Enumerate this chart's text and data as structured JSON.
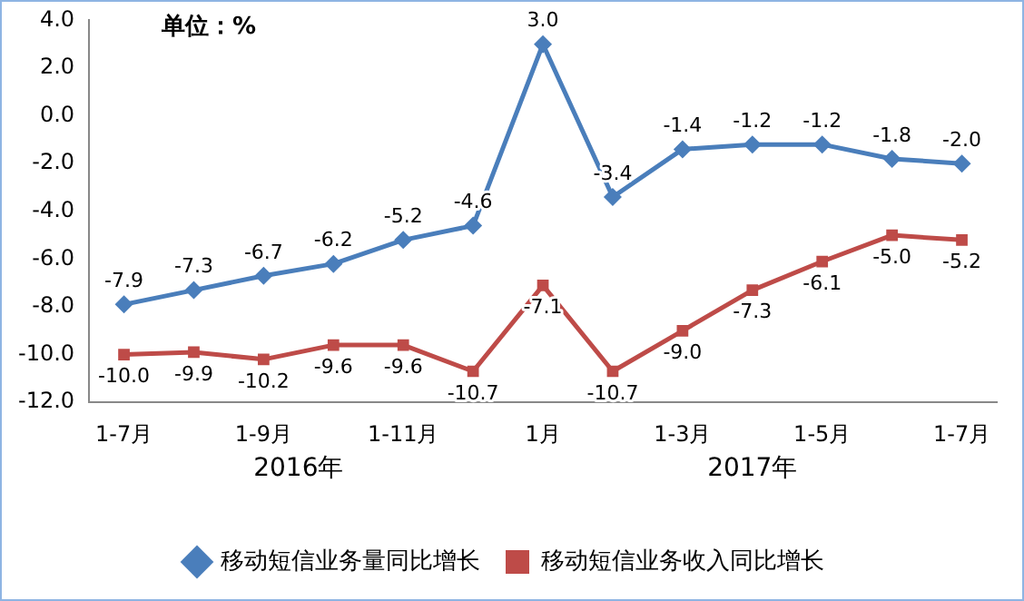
{
  "chart_data": {
    "type": "line",
    "categories": [
      "1-7月",
      null,
      "1-9月",
      null,
      "1-11月",
      null,
      "1月",
      null,
      "1-3月",
      null,
      "1-5月",
      null,
      "1-7月"
    ],
    "series": [
      {
        "name": "移动短信业务量同比增长",
        "color": "#4a7ebb",
        "marker": "diamond",
        "values": [
          -7.9,
          -7.3,
          -6.7,
          -6.2,
          -5.2,
          -4.6,
          3.0,
          -3.4,
          -1.4,
          -1.2,
          -1.2,
          -1.8,
          -2.0
        ],
        "value_labels": [
          "-7.9",
          "-7.3",
          "-6.7",
          "-6.2",
          "-5.2",
          "-4.6",
          "3.0",
          "-3.4",
          "-1.4",
          "-1.2",
          "-1.2",
          "-1.8",
          "-2.0"
        ]
      },
      {
        "name": "移动短信业务收入同比增长",
        "color": "#be4b48",
        "marker": "square",
        "values": [
          -10.0,
          -9.9,
          -10.2,
          -9.6,
          -9.6,
          -10.7,
          -7.1,
          -10.7,
          -9.0,
          -7.3,
          -6.1,
          -5.0,
          -5.2
        ],
        "value_labels": [
          "-10.0",
          "-9.9",
          "-10.2",
          "-9.6",
          "-9.6",
          "-10.7",
          "-7.1",
          "-10.7",
          "-9.0",
          "-7.3",
          "-6.1",
          "-5.0",
          "-5.2"
        ]
      }
    ],
    "ylim": [
      -12,
      4
    ],
    "yticks": [
      {
        "value": -12,
        "label": "-12.0"
      },
      {
        "value": -10,
        "label": "-10.0"
      },
      {
        "value": -8,
        "label": "-8.0"
      },
      {
        "value": -6,
        "label": "-6.0"
      },
      {
        "value": -4,
        "label": "-4.0"
      },
      {
        "value": -2,
        "label": "-2.0"
      },
      {
        "value": 0,
        "label": "0.0"
      },
      {
        "value": 2,
        "label": "2.0"
      },
      {
        "value": 4,
        "label": "4.0"
      }
    ],
    "grid": false,
    "legend": "bottom",
    "line_style": "solid",
    "annotations": [
      "单位：%",
      "2016年",
      "2017年"
    ]
  }
}
